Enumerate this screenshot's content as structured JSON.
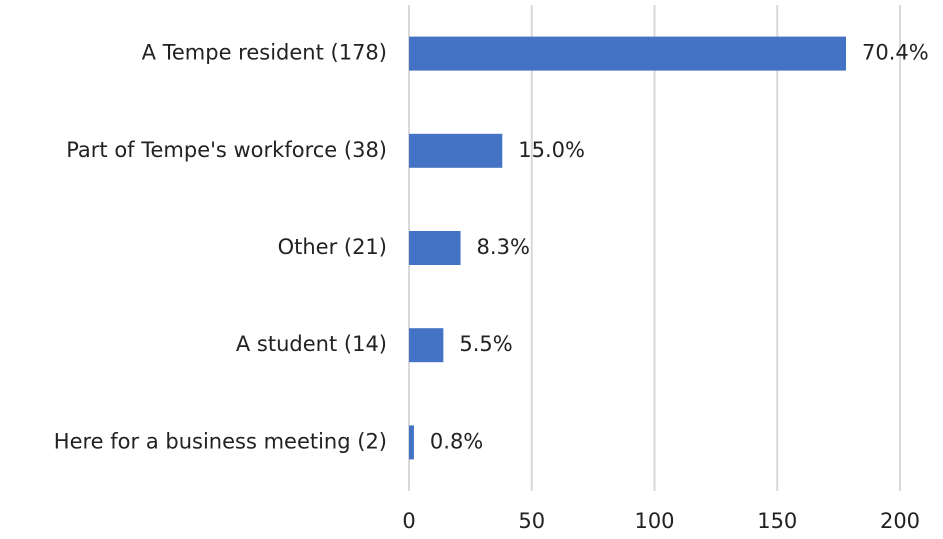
{
  "chart_data": {
    "type": "bar",
    "orientation": "horizontal",
    "categories": [
      "A Tempe resident (178)",
      "Part of Tempe's workforce (38)",
      "Other (21)",
      "A student (14)",
      "Here for a business meeting (2)"
    ],
    "values": [
      178,
      38,
      21,
      14,
      2
    ],
    "percent_labels": [
      "70.4%",
      "15.0%",
      "8.3%",
      "5.5%",
      "0.8%"
    ],
    "color": "#4472c4",
    "xlim": [
      0,
      200
    ],
    "xticks": [
      0,
      50,
      100,
      150,
      200
    ],
    "grid": true
  }
}
